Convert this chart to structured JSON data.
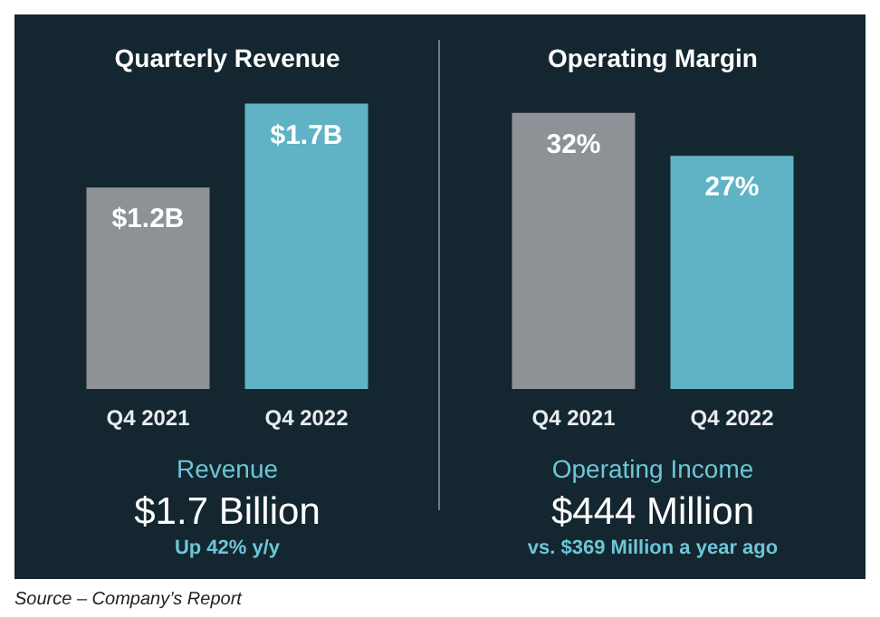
{
  "chart_data": [
    {
      "type": "bar",
      "title": "Quarterly Revenue",
      "categories": [
        "Q4 2021",
        "Q4 2022"
      ],
      "values": [
        1.2,
        1.7
      ],
      "colors": [
        "#8e9296",
        "#5fb3c4"
      ],
      "value_labels": [
        "$1.2B",
        "$1.7B"
      ],
      "annotations": [
        "Revenue",
        "$1.7 Billion",
        "Up 42% y/y",
        "Source – Company’s Report"
      ]
    },
    {
      "type": "bar",
      "title": "Operating Margin",
      "categories": [
        "Q4 2021",
        "Q4 2022"
      ],
      "values": [
        32,
        27
      ],
      "colors": [
        "#8e9296",
        "#5fb3c4"
      ],
      "value_labels": [
        "32%",
        "27%"
      ],
      "annotations": [
        "Operating Income",
        "$444 Million",
        "vs. $369 Million a year ago"
      ]
    }
  ]
}
